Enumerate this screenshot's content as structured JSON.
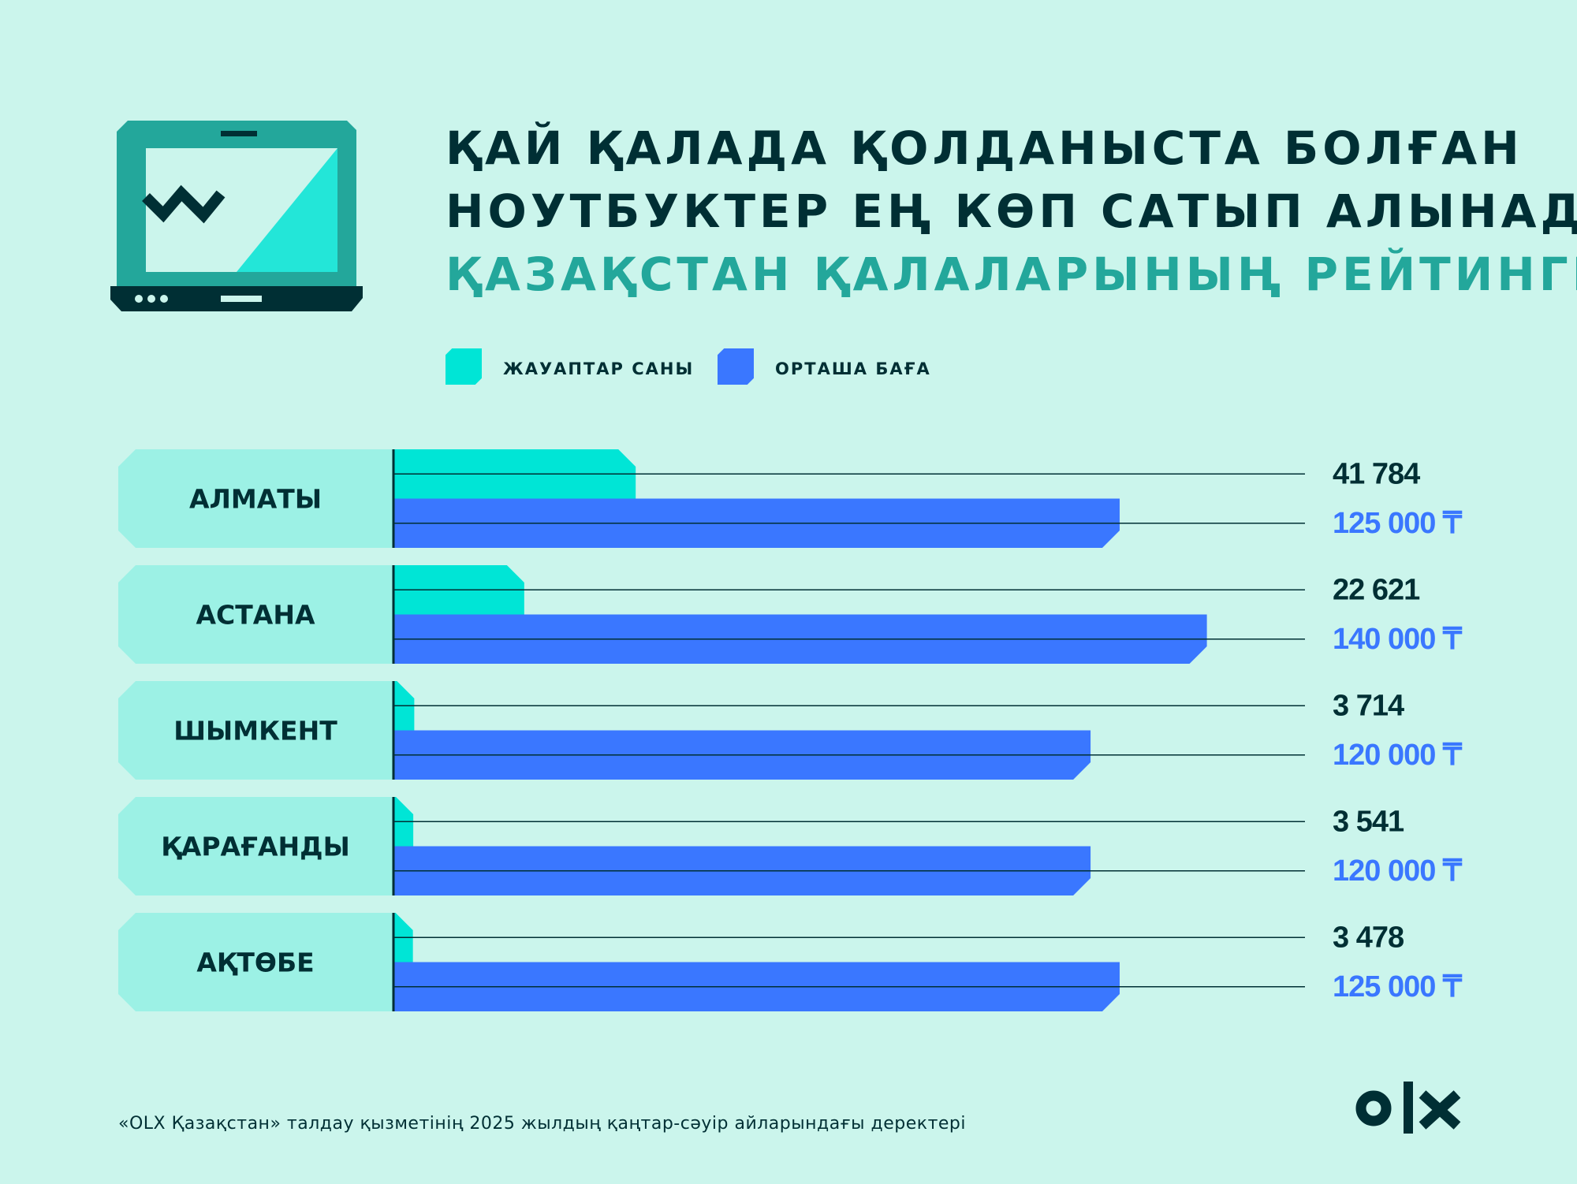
{
  "header": {
    "title_line_1": "ҚАЙ ҚАЛАДА ҚОЛДАНЫСТА БОЛҒАН",
    "title_line_2": "НОУТБУКТЕР ЕҢ КӨП САТЫП АЛЫНАДЫ",
    "title_line_3": "ҚАЗАҚСТАН ҚАЛАЛАРЫНЫҢ РЕЙТИНГІ"
  },
  "legend": {
    "responses_label": "ЖАУАПТАР САНЫ",
    "price_label": "ОРТАША БАҒА"
  },
  "colors": {
    "background": "#cbf5ec",
    "responses": "#00e5d6",
    "price": "#3a77ff",
    "label_panel": "#9cf1e5",
    "dark": "#002f34",
    "title_accent": "#23a79b",
    "price_text": "#3a77ff"
  },
  "icons": {
    "laptop": "laptop-icon",
    "logo": "olx-logo"
  },
  "chart_data": {
    "type": "bar",
    "orientation": "horizontal",
    "categories": [
      "АЛМАТЫ",
      "АСТАНА",
      "ШЫМКЕНТ",
      "ҚАРАҒАНДЫ",
      "АҚТӨБЕ"
    ],
    "series": [
      {
        "name": "ЖАУАПТАР САНЫ",
        "values": [
          41784,
          22621,
          3714,
          3541,
          3478
        ],
        "value_labels": [
          "41 784",
          "22 621",
          "3 714",
          "3 541",
          "3 478"
        ],
        "xlim": [
          0,
          165000
        ]
      },
      {
        "name": "ОРТАША БАҒА",
        "values": [
          125000,
          140000,
          120000,
          120000,
          125000
        ],
        "value_labels": [
          "125 000 ₸",
          "140 000 ₸",
          "120 000 ₸",
          "120 000 ₸",
          "125 000 ₸"
        ],
        "xlim": [
          0,
          165000
        ]
      }
    ],
    "legend_position": "top-left",
    "grid": true
  },
  "footer": {
    "source_note": "«OLX Қазақстан» талдау қызметінің 2025 жылдың қаңтар-сәуір айларындағы деректері",
    "logo_text": "olx"
  }
}
